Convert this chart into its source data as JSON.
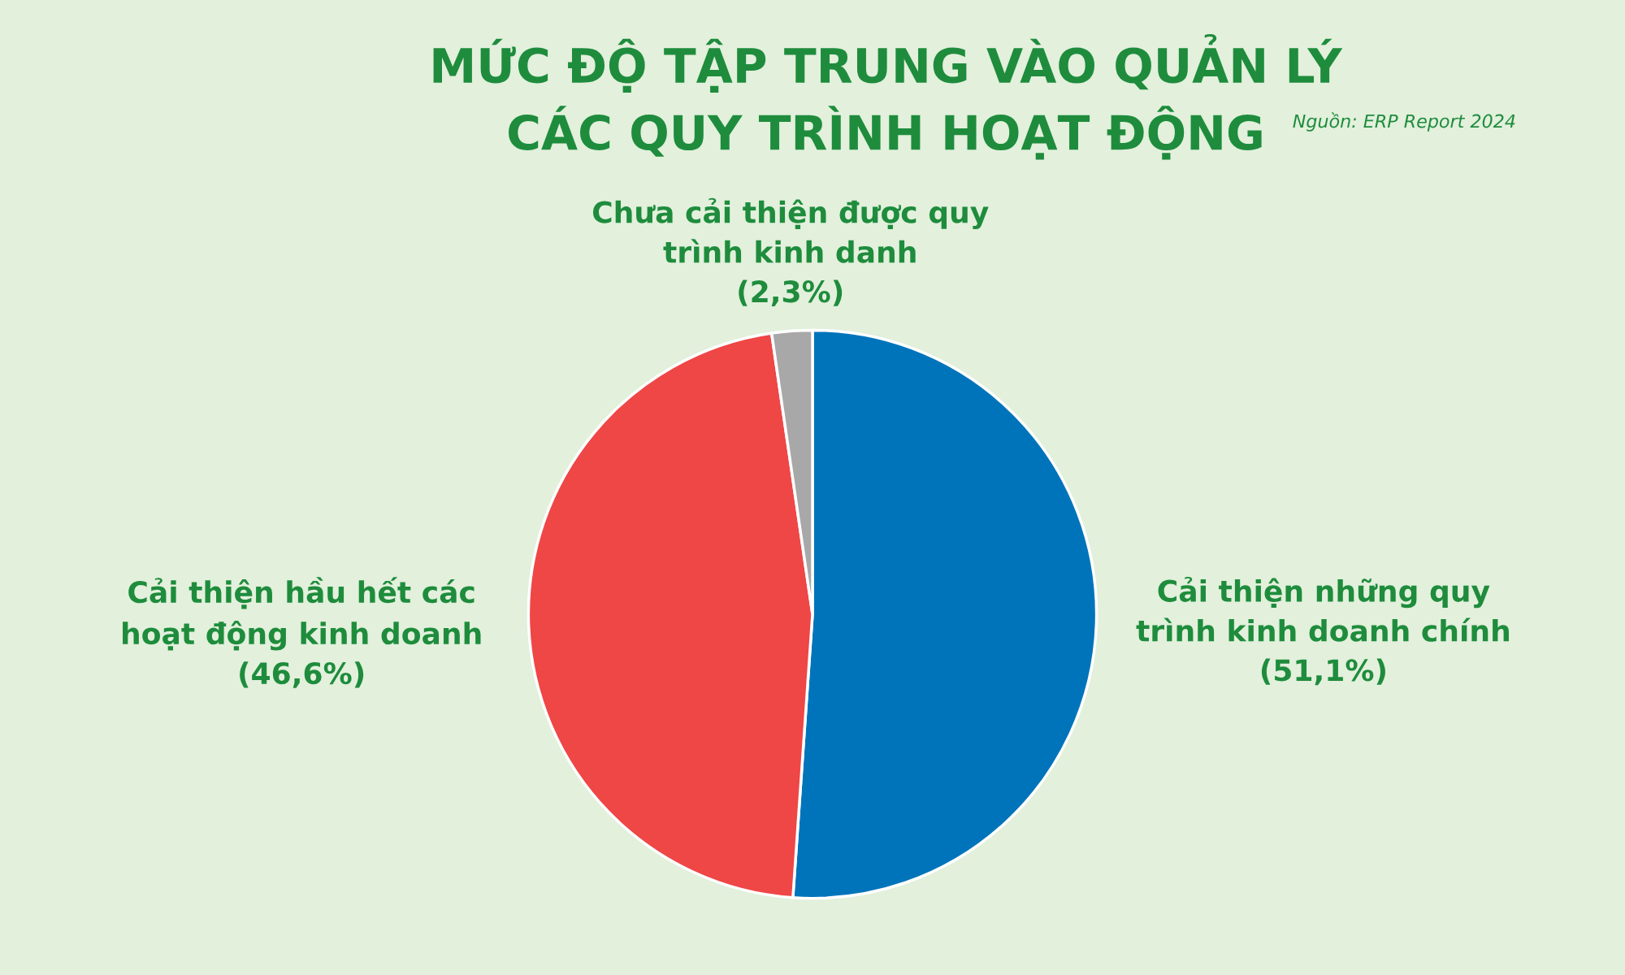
{
  "chart_data": {
    "type": "pie",
    "title": "MỨC ĐỘ TẬP TRUNG VÀO QUẢN LÝ\nCÁC QUY TRÌNH HOẠT ĐỘNG",
    "annotations": [
      "Nguồn: ERP Report 2024"
    ],
    "categories": [
      "Cải thiện những quy\ntrình kinh doanh chính",
      "Cải thiện hầu hết các\nhoạt động kinh doanh",
      "Chưa cải thiện được quy\ntrình kinh danh"
    ],
    "values": [
      51.1,
      46.6,
      2.3
    ],
    "value_labels": [
      "(51,1%)",
      "(46,6%)",
      "(2,3%)"
    ],
    "colors": [
      "#0074bb",
      "#ef4646",
      "#a8a8a8"
    ],
    "legend": false
  }
}
